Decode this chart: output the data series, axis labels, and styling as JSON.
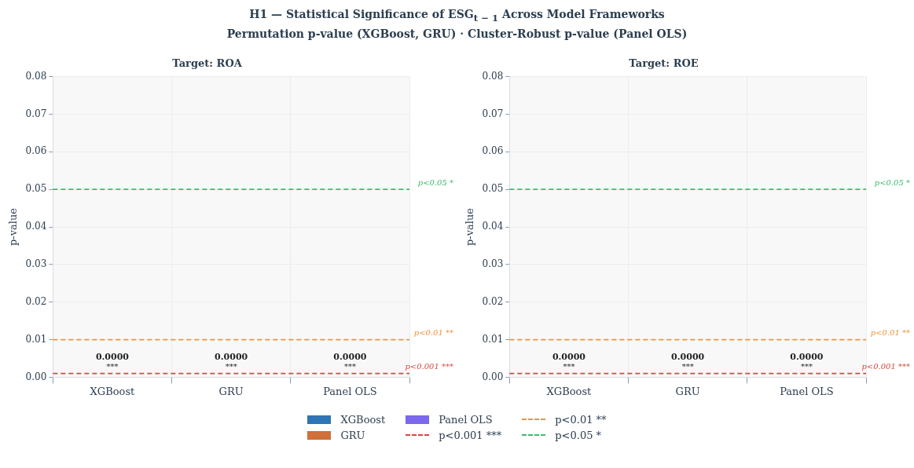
{
  "chart_data": [
    {
      "type": "bar",
      "title": "Target: ROA",
      "ylabel": "p-value",
      "annotations": [
        "H1 — Statistical Significance of ESG$_{t − 1}$ Across Model Frameworks",
        "Permutation p-value (XGBoost, GRU) · Cluster-Robust p-value (Panel OLS)"
      ],
      "categories": [
        "XGBoost",
        "GRU",
        "Panel OLS"
      ],
      "values": [
        0,
        0,
        0
      ],
      "colors": [
        "#2e75b6",
        "#d0703a",
        "#7b68ee"
      ],
      "value_labels": [
        "0.0000\n***",
        "0.0000\n***",
        "0.0000\n***"
      ],
      "ylim": [
        0,
        0.08
      ],
      "yticks": [
        {
          "value": 0,
          "label": "0.00"
        },
        {
          "value": 0.01,
          "label": "0.01"
        },
        {
          "value": 0.02,
          "label": "0.02"
        },
        {
          "value": 0.03,
          "label": "0.03"
        },
        {
          "value": 0.04,
          "label": "0.04"
        },
        {
          "value": 0.05,
          "label": "0.05"
        },
        {
          "value": 0.06,
          "label": "0.06"
        },
        {
          "value": 0.07,
          "label": "0.07"
        },
        {
          "value": 0.08,
          "label": "0.08"
        }
      ],
      "ref_lines": [
        {
          "axis": "y",
          "value": 0.001,
          "label": "p<0.001 ***",
          "color": "#d04a3f",
          "line_style": "dashed"
        },
        {
          "axis": "y",
          "value": 0.01,
          "label": "p<0.01 **",
          "color": "#f0923c",
          "line_style": "dashed"
        },
        {
          "axis": "y",
          "value": 0.05,
          "label": "p<0.05 *",
          "color": "#3dbb6e",
          "line_style": "dashed"
        }
      ],
      "grid": true,
      "legend": "bottom"
    },
    {
      "type": "bar",
      "title": "Target: ROE",
      "ylabel": "p-value",
      "categories": [
        "XGBoost",
        "GRU",
        "Panel OLS"
      ],
      "values": [
        0,
        0,
        0
      ],
      "colors": [
        "#2e75b6",
        "#d0703a",
        "#7b68ee"
      ],
      "value_labels": [
        "0.0000\n***",
        "0.0000\n***",
        "0.0000\n***"
      ],
      "ylim": [
        0,
        0.08
      ],
      "yticks": [
        {
          "value": 0,
          "label": "0.00"
        },
        {
          "value": 0.01,
          "label": "0.01"
        },
        {
          "value": 0.02,
          "label": "0.02"
        },
        {
          "value": 0.03,
          "label": "0.03"
        },
        {
          "value": 0.04,
          "label": "0.04"
        },
        {
          "value": 0.05,
          "label": "0.05"
        },
        {
          "value": 0.06,
          "label": "0.06"
        },
        {
          "value": 0.07,
          "label": "0.07"
        },
        {
          "value": 0.08,
          "label": "0.08"
        }
      ],
      "ref_lines": [
        {
          "axis": "y",
          "value": 0.001,
          "label": "p<0.001 ***",
          "color": "#d04a3f",
          "line_style": "dashed"
        },
        {
          "axis": "y",
          "value": 0.01,
          "label": "p<0.01 **",
          "color": "#f0923c",
          "line_style": "dashed"
        },
        {
          "axis": "y",
          "value": 0.05,
          "label": "p<0.05 *",
          "color": "#3dbb6e",
          "line_style": "dashed"
        }
      ],
      "grid": true
    }
  ]
}
